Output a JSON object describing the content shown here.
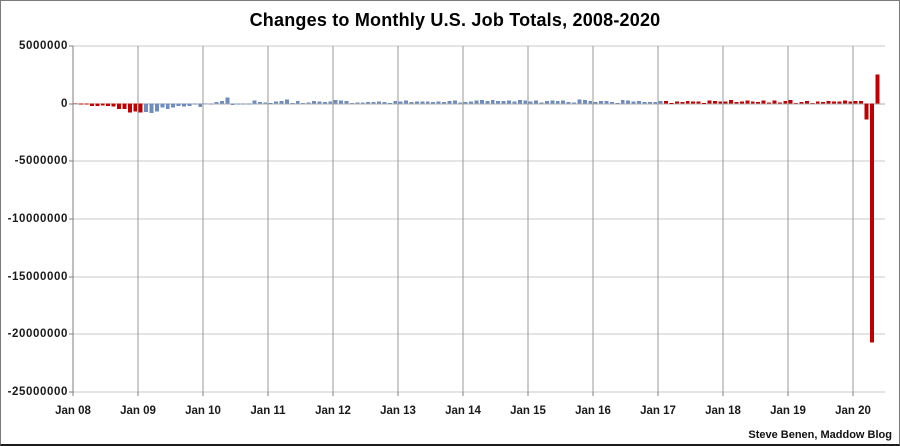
{
  "page": {
    "title": "Changes to Monthly U.S. Job Totals, 2008-2020",
    "attribution": "Steve Benen, Maddow Blog"
  },
  "chart_data": {
    "type": "bar",
    "title": "Changes to Monthly U.S. Job Totals, 2008-2020",
    "xlabel": "",
    "ylabel": "",
    "start_month": "2008-01",
    "end_month": "2020-05",
    "x_tick_labels": [
      "Jan 08",
      "Jan 09",
      "Jan 10",
      "Jan 11",
      "Jan 12",
      "Jan 13",
      "Jan 14",
      "Jan 15",
      "Jan 16",
      "Jan 17",
      "Jan 18",
      "Jan 19",
      "Jan 20"
    ],
    "y_ticks": [
      5000000,
      0,
      -5000000,
      -10000000,
      -15000000,
      -20000000,
      -25000000
    ],
    "y_tick_labels": [
      "5000000",
      "0",
      "-5000000",
      "-10000000",
      "-15000000",
      "-20000000",
      "-25000000"
    ],
    "ylim": [
      -25000000,
      5000000
    ],
    "grid": true,
    "legend": false,
    "values": [
      18000,
      -86000,
      -80000,
      -214000,
      -182000,
      -172000,
      -210000,
      -259000,
      -452000,
      -474000,
      -765000,
      -697000,
      -783000,
      -743000,
      -800000,
      -695000,
      -354000,
      -467000,
      -327000,
      -216000,
      -227000,
      -198000,
      -6000,
      -283000,
      18000,
      -50000,
      156000,
      251000,
      516000,
      -122000,
      -61000,
      -42000,
      -57000,
      257000,
      123000,
      88000,
      42000,
      188000,
      225000,
      346000,
      73000,
      235000,
      70000,
      107000,
      246000,
      202000,
      146000,
      207000,
      338000,
      257000,
      239000,
      75000,
      115000,
      87000,
      143000,
      165000,
      185000,
      160000,
      40000,
      214000,
      197000,
      280000,
      141000,
      203000,
      199000,
      177000,
      149000,
      202000,
      164000,
      237000,
      274000,
      84000,
      144000,
      168000,
      272000,
      310000,
      213000,
      306000,
      232000,
      218000,
      286000,
      200000,
      331000,
      292000,
      201000,
      266000,
      85000,
      251000,
      273000,
      228000,
      277000,
      150000,
      100000,
      344000,
      298000,
      239000,
      126000,
      237000,
      225000,
      153000,
      43000,
      297000,
      291000,
      176000,
      249000,
      124000,
      164000,
      155000,
      216000,
      232000,
      50000,
      175000,
      155000,
      239000,
      190000,
      208000,
      38000,
      271000,
      216000,
      175000,
      176000,
      324000,
      155000,
      175000,
      268000,
      208000,
      165000,
      286000,
      119000,
      277000,
      119000,
      227000,
      312000,
      56000,
      153000,
      216000,
      62000,
      178000,
      166000,
      219000,
      180000,
      185000,
      261000,
      184000,
      214000,
      251000,
      -1373000,
      -20687000,
      2509000
    ],
    "color_segments": [
      {
        "start_index": 0,
        "end_index": 12,
        "color": "#C00000"
      },
      {
        "start_index": 13,
        "end_index": 108,
        "color": "#6E8CBE"
      },
      {
        "start_index": 109,
        "end_index": 148,
        "color": "#C00000"
      }
    ]
  }
}
